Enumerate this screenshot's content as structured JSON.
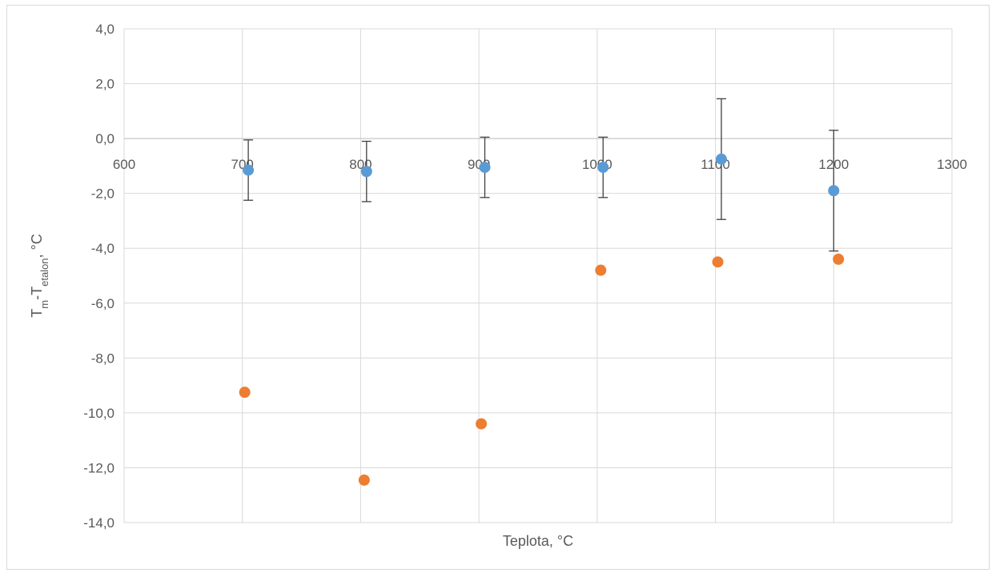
{
  "chart_data": {
    "type": "scatter",
    "xlabel": "Teplota, °C",
    "ylabel": {
      "main": "T",
      "sub1": "m",
      "mid": "-T",
      "sub2": "etalon",
      "tail": ", °C"
    },
    "xlim": [
      600,
      1300
    ],
    "ylim": [
      -14,
      4
    ],
    "x_ticks": [
      "600",
      "700",
      "800",
      "900",
      "1000",
      "1100",
      "1200",
      "1300"
    ],
    "y_ticks": [
      "4,0",
      "2,0",
      "0,0",
      "-2,0",
      "-4,0",
      "-6,0",
      "-8,0",
      "-10,0",
      "-12,0",
      "-14,0"
    ],
    "grid": true,
    "series": [
      {
        "color": "#5b9bd5",
        "points": [
          {
            "x": 705,
            "y": -1.15,
            "err": 1.1
          },
          {
            "x": 805,
            "y": -1.2,
            "err": 1.1
          },
          {
            "x": 905,
            "y": -1.05,
            "err": 1.1
          },
          {
            "x": 1005,
            "y": -1.05,
            "err": 1.1
          },
          {
            "x": 1105,
            "y": -0.75,
            "err": 2.2
          },
          {
            "x": 1200,
            "y": -1.9,
            "err": 2.2
          }
        ]
      },
      {
        "color": "#ed7d31",
        "points": [
          {
            "x": 702,
            "y": -9.25
          },
          {
            "x": 803,
            "y": -12.45
          },
          {
            "x": 902,
            "y": -10.4
          },
          {
            "x": 1003,
            "y": -4.8
          },
          {
            "x": 1102,
            "y": -4.5
          },
          {
            "x": 1204,
            "y": -4.4
          }
        ]
      }
    ]
  }
}
